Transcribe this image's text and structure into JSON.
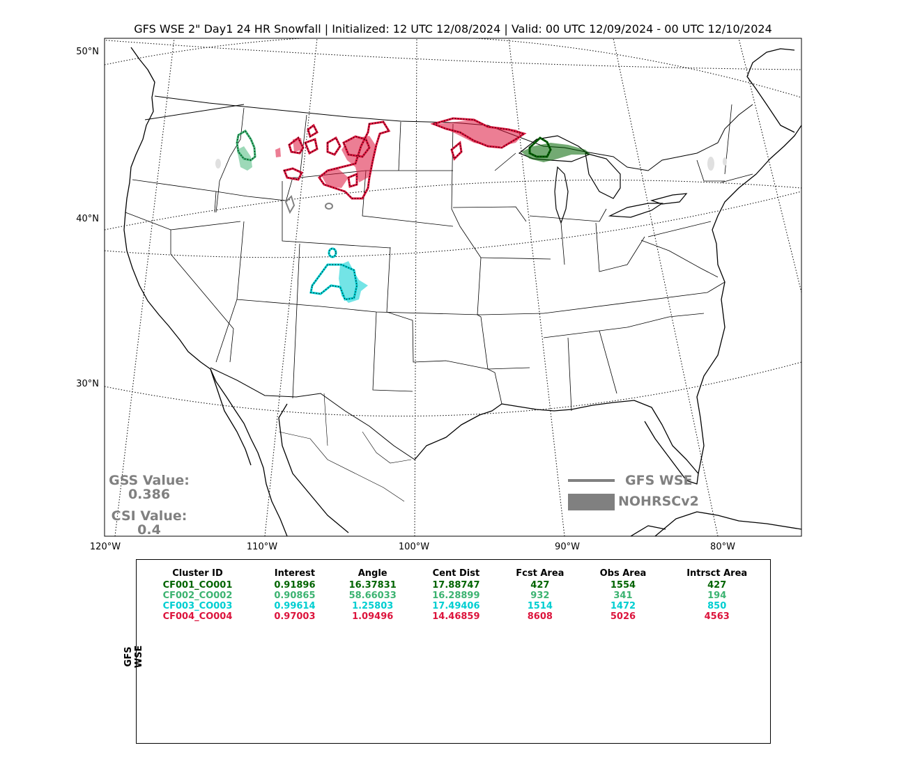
{
  "title": "GFS WSE 2\" Day1 24 HR Snowfall | Initialized: 12 UTC 12/08/2024 | Valid: 00 UTC 12/09/2024 - 00 UTC 12/10/2024",
  "lat_labels": [
    "50°N",
    "40°N",
    "30°N"
  ],
  "lon_labels": [
    "120°W",
    "110°W",
    "100°W",
    "90°W",
    "80°W"
  ],
  "stats": {
    "gss_label": "GSS Value:",
    "gss_value": "0.386",
    "csi_label": "CSI Value:",
    "csi_value": "0.4"
  },
  "legend": {
    "line_label": "GFS WSE",
    "fill_label": "NOHRSCv2",
    "line_color": "#808080",
    "fill_color": "#808080"
  },
  "table": {
    "side_label": "GFS WSE",
    "headers": [
      "Cluster ID",
      "Interest",
      "Angle",
      "Cent Dist",
      "Fcst Area",
      "Obs Area",
      "Intrsct Area"
    ],
    "rows": [
      {
        "color": "#006400",
        "cells": [
          "CF001_CO001",
          "0.91896",
          "16.37831",
          "17.88747",
          "427",
          "1554",
          "427"
        ]
      },
      {
        "color": "#3cb371",
        "cells": [
          "CF002_CO002",
          "0.90865",
          "58.66033",
          "16.28899",
          "932",
          "341",
          "194"
        ]
      },
      {
        "color": "#00ced1",
        "cells": [
          "CF003_CO003",
          "0.99614",
          "1.25803",
          "17.49406",
          "1514",
          "1472",
          "850"
        ]
      },
      {
        "color": "#dc143c",
        "cells": [
          "CF004_CO004",
          "0.97003",
          "1.09496",
          "14.46859",
          "8608",
          "5026",
          "4563"
        ]
      }
    ]
  },
  "map_colors": {
    "cluster1": "#006400",
    "cluster2": "#3cb371",
    "cluster3": "#00ced1",
    "cluster4": "#dc143c",
    "unmatched": "#808080"
  }
}
